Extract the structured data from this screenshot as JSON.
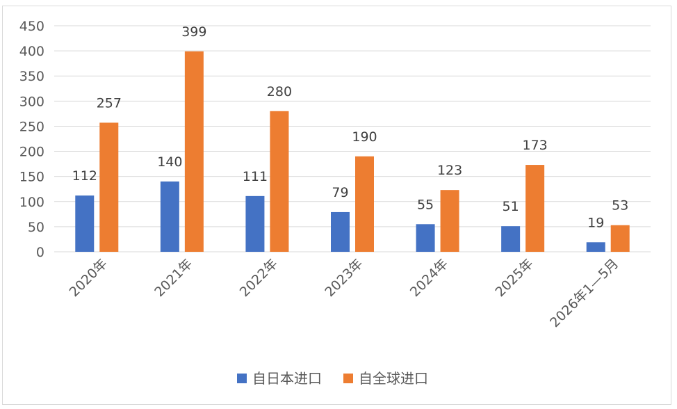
{
  "chart_data": {
    "type": "bar",
    "categories": [
      "2020年",
      "2021年",
      "2022年",
      "2023年",
      "2024年",
      "2025年",
      "2026年1—5月"
    ],
    "series": [
      {
        "name": "自日本进口",
        "color": "#4472c4",
        "values": [
          112,
          140,
          111,
          79,
          55,
          51,
          19
        ]
      },
      {
        "name": "自全球进口",
        "color": "#ed7d31",
        "values": [
          257,
          399,
          280,
          190,
          123,
          173,
          53
        ]
      }
    ],
    "y_ticks": [
      "0",
      "50",
      "100",
      "150",
      "200",
      "250",
      "300",
      "350",
      "400",
      "450"
    ],
    "ylim": [
      0,
      450
    ],
    "grid": true,
    "legend": "bottom",
    "data_labels": true
  }
}
